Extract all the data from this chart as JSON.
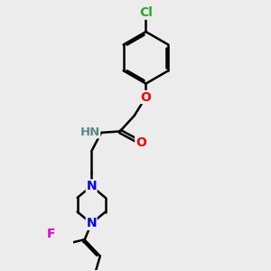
{
  "background_color": "#ececec",
  "atom_colors": {
    "C": "#000000",
    "H": "#5a8a8a",
    "N": "#0000ee",
    "O": "#ee0000",
    "F": "#dd00dd",
    "Cl": "#22aa22"
  },
  "bond_color": "#000000",
  "bond_width": 1.8,
  "dbo": 0.08,
  "font_size": 10,
  "figsize": [
    3.0,
    3.0
  ],
  "dpi": 100
}
